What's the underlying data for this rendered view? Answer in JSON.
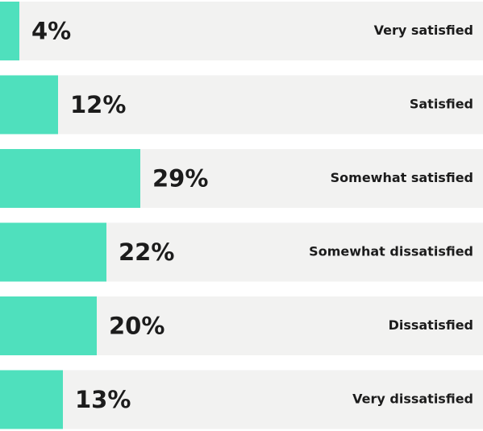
{
  "chart_data": {
    "type": "hbar",
    "categories": [
      "Very satisfied",
      "Satisfied",
      "Somewhat satisfied",
      "Somewhat dissatisfied",
      "Dissatisfied",
      "Very dissatisfied"
    ],
    "values": [
      4,
      12,
      29,
      22,
      20,
      13
    ],
    "value_labels": [
      "4%",
      "12%",
      "29%",
      "22%",
      "20%",
      "13%"
    ],
    "color": "#4fe0bd",
    "xlim": [
      0,
      100
    ]
  }
}
